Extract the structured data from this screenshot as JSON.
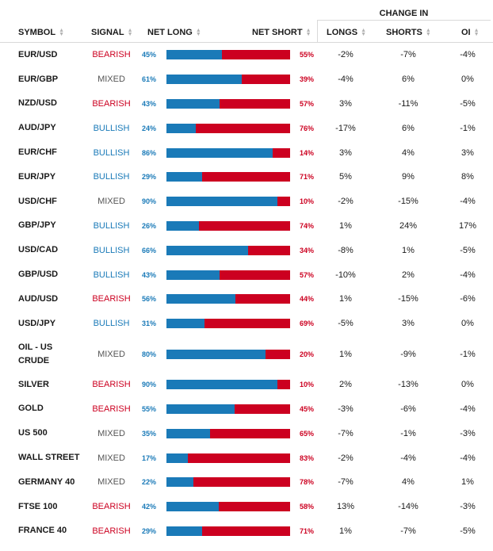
{
  "header": {
    "change_in": "CHANGE IN",
    "symbol": "SYMBOL",
    "signal": "SIGNAL",
    "net_long": "NET LONG",
    "net_short": "NET SHORT",
    "longs": "LONGS",
    "shorts": "SHORTS",
    "oi": "OI"
  },
  "colors": {
    "long": "#1a7ab8",
    "short": "#cc0020",
    "mixed": "#555555",
    "divider": "#d9d9d9"
  },
  "rows": [
    {
      "symbol": "EUR/USD",
      "signal": "BEARISH",
      "long": "45%",
      "short": "55%",
      "longs": "-2%",
      "shorts": "-7%",
      "oi": "-4%"
    },
    {
      "symbol": "EUR/GBP",
      "signal": "MIXED",
      "long": "61%",
      "short": "39%",
      "longs": "-4%",
      "shorts": "6%",
      "oi": "0%"
    },
    {
      "symbol": "NZD/USD",
      "signal": "BEARISH",
      "long": "43%",
      "short": "57%",
      "longs": "3%",
      "shorts": "-11%",
      "oi": "-5%"
    },
    {
      "symbol": "AUD/JPY",
      "signal": "BULLISH",
      "long": "24%",
      "short": "76%",
      "longs": "-17%",
      "shorts": "6%",
      "oi": "-1%"
    },
    {
      "symbol": "EUR/CHF",
      "signal": "BULLISH",
      "long": "86%",
      "short": "14%",
      "longs": "3%",
      "shorts": "4%",
      "oi": "3%"
    },
    {
      "symbol": "EUR/JPY",
      "signal": "BULLISH",
      "long": "29%",
      "short": "71%",
      "longs": "5%",
      "shorts": "9%",
      "oi": "8%"
    },
    {
      "symbol": "USD/CHF",
      "signal": "MIXED",
      "long": "90%",
      "short": "10%",
      "longs": "-2%",
      "shorts": "-15%",
      "oi": "-4%"
    },
    {
      "symbol": "GBP/JPY",
      "signal": "BULLISH",
      "long": "26%",
      "short": "74%",
      "longs": "1%",
      "shorts": "24%",
      "oi": "17%"
    },
    {
      "symbol": "USD/CAD",
      "signal": "BULLISH",
      "long": "66%",
      "short": "34%",
      "longs": "-8%",
      "shorts": "1%",
      "oi": "-5%"
    },
    {
      "symbol": "GBP/USD",
      "signal": "BULLISH",
      "long": "43%",
      "short": "57%",
      "longs": "-10%",
      "shorts": "2%",
      "oi": "-4%"
    },
    {
      "symbol": "AUD/USD",
      "signal": "BEARISH",
      "long": "56%",
      "short": "44%",
      "longs": "1%",
      "shorts": "-15%",
      "oi": "-6%"
    },
    {
      "symbol": "USD/JPY",
      "signal": "BULLISH",
      "long": "31%",
      "short": "69%",
      "longs": "-5%",
      "shorts": "3%",
      "oi": "0%"
    },
    {
      "symbol": "OIL - US CRUDE",
      "signal": "MIXED",
      "long": "80%",
      "short": "20%",
      "longs": "1%",
      "shorts": "-9%",
      "oi": "-1%"
    },
    {
      "symbol": "SILVER",
      "signal": "BEARISH",
      "long": "90%",
      "short": "10%",
      "longs": "2%",
      "shorts": "-13%",
      "oi": "0%"
    },
    {
      "symbol": "GOLD",
      "signal": "BEARISH",
      "long": "55%",
      "short": "45%",
      "longs": "-3%",
      "shorts": "-6%",
      "oi": "-4%"
    },
    {
      "symbol": "US 500",
      "signal": "MIXED",
      "long": "35%",
      "short": "65%",
      "longs": "-7%",
      "shorts": "-1%",
      "oi": "-3%"
    },
    {
      "symbol": "WALL STREET",
      "signal": "MIXED",
      "long": "17%",
      "short": "83%",
      "longs": "-2%",
      "shorts": "-4%",
      "oi": "-4%"
    },
    {
      "symbol": "GERMANY 40",
      "signal": "MIXED",
      "long": "22%",
      "short": "78%",
      "longs": "-7%",
      "shorts": "4%",
      "oi": "1%"
    },
    {
      "symbol": "FTSE 100",
      "signal": "BEARISH",
      "long": "42%",
      "short": "58%",
      "longs": "13%",
      "shorts": "-14%",
      "oi": "-3%"
    },
    {
      "symbol": "FRANCE 40",
      "signal": "BEARISH",
      "long": "29%",
      "short": "71%",
      "longs": "1%",
      "shorts": "-7%",
      "oi": "-5%"
    }
  ]
}
